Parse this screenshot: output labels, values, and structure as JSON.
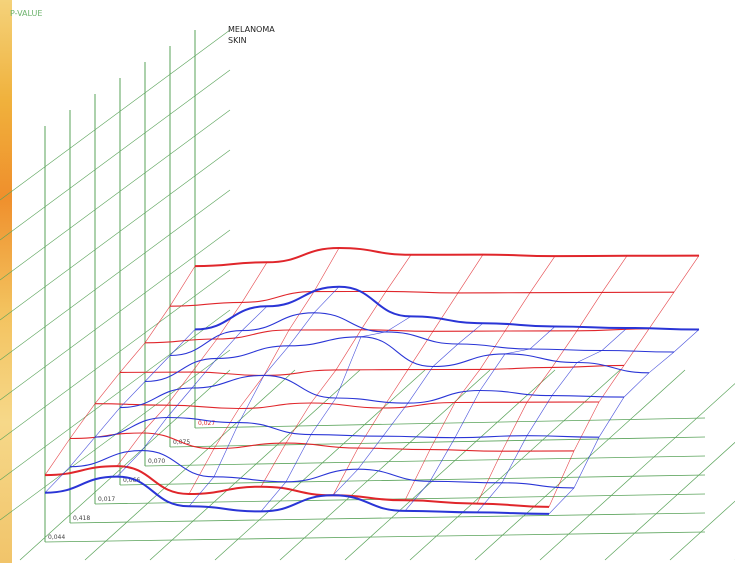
{
  "chart_data": {
    "type": "surface-3d",
    "title": "",
    "corner_label": "P-VALUE",
    "legend": [
      "MELANOMA",
      "SKIN"
    ],
    "depth_axis_labels": [
      "0,027",
      "0,075",
      "0,070",
      "0,066",
      "0,017",
      "0,418",
      "0,044"
    ],
    "colors": {
      "melanoma": "#e0262b",
      "skin": "#2a35d6",
      "grid": "#5aa35a",
      "label_red": "#e0262b"
    },
    "series": [
      {
        "name": "MELANOMA",
        "rows": [
          [
            0.62,
            0.63,
            0.7,
            0.65,
            0.64,
            0.62,
            0.61,
            0.6
          ],
          [
            0.5,
            0.51,
            0.56,
            0.55,
            0.53,
            0.52,
            0.51,
            0.5
          ],
          [
            0.4,
            0.41,
            0.45,
            0.44,
            0.42,
            0.41,
            0.4,
            0.4
          ],
          [
            0.34,
            0.33,
            0.3,
            0.32,
            0.31,
            0.3,
            0.3,
            0.3
          ],
          [
            0.27,
            0.25,
            0.22,
            0.24,
            0.2,
            0.22,
            0.21,
            0.2
          ],
          [
            0.18,
            0.2,
            0.1,
            0.12,
            0.08,
            0.06,
            0.04,
            0.03
          ],
          [
            0.08,
            0.12,
            -0.05,
            -0.02,
            -0.08,
            -0.12,
            -0.15,
            -0.18
          ]
        ]
      },
      {
        "name": "SKIN",
        "rows": [
          [
            0.26,
            0.38,
            0.48,
            0.3,
            0.25,
            0.22,
            0.2,
            0.18
          ],
          [
            0.22,
            0.35,
            0.44,
            0.32,
            0.24,
            0.2,
            0.18,
            0.16
          ],
          [
            0.18,
            0.3,
            0.36,
            0.4,
            0.22,
            0.28,
            0.22,
            0.15
          ],
          [
            0.14,
            0.24,
            0.3,
            0.16,
            0.12,
            0.18,
            0.14,
            0.12
          ],
          [
            0.08,
            0.18,
            0.14,
            0.06,
            0.04,
            0.02,
            0.02,
            0.0
          ],
          [
            0.02,
            0.1,
            -0.06,
            -0.1,
            -0.04,
            -0.12,
            -0.14,
            -0.18
          ],
          [
            -0.02,
            0.06,
            -0.12,
            -0.16,
            -0.08,
            -0.18,
            -0.2,
            -0.22
          ]
        ]
      }
    ]
  }
}
